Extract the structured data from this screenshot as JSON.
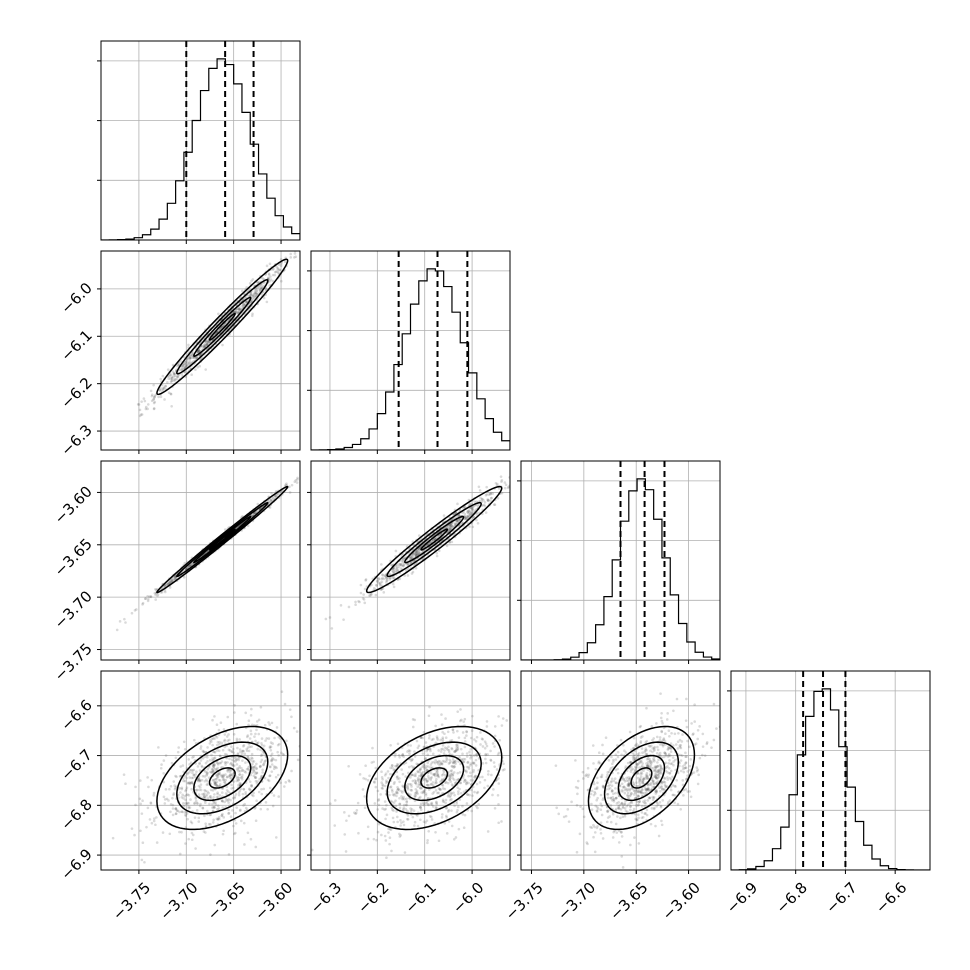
{
  "chart_data": {
    "type": "corner",
    "parameters": [
      {
        "range": [
          -3.79,
          -3.58
        ],
        "ticks": [
          -3.75,
          -3.7,
          -3.65,
          -3.6
        ],
        "tick_labels": [
          "−3.75",
          "−3.70",
          "−3.65",
          "−3.60"
        ],
        "quantiles": [
          -3.7,
          -3.659,
          -3.629
        ],
        "mean": -3.662,
        "sd": 0.03
      },
      {
        "range": [
          -6.34,
          -5.92
        ],
        "ticks": [
          -6.3,
          -6.2,
          -6.1,
          -6.0
        ],
        "tick_labels": [
          "−6.3",
          "−6.2",
          "−6.1",
          "−6.0"
        ],
        "quantiles": [
          -6.155,
          -6.073,
          -6.01
        ],
        "mean": -6.08,
        "sd": 0.062
      },
      {
        "range": [
          -3.76,
          -3.57
        ],
        "ticks": [
          -3.75,
          -3.7,
          -3.65,
          -3.6
        ],
        "tick_labels": [
          "−3.75",
          "−3.70",
          "−3.65",
          "−3.60"
        ],
        "quantiles": [
          -3.665,
          -3.642,
          -3.623
        ],
        "mean": -3.645,
        "sd": 0.022
      },
      {
        "range": [
          -6.93,
          -6.53
        ],
        "ticks": [
          -6.9,
          -6.8,
          -6.7,
          -6.6
        ],
        "tick_labels": [
          "−6.9",
          "−6.8",
          "−6.7",
          "−6.6"
        ],
        "quantiles": [
          -6.785,
          -6.745,
          -6.7
        ],
        "mean": -6.745,
        "sd": 0.045
      }
    ],
    "correlations": {
      "1-0": 0.98,
      "2-0": 0.995,
      "2-1": 0.97,
      "3-0": 0.45,
      "3-1": 0.4,
      "3-2": 0.45
    },
    "grid": true,
    "quantile_style": "dashed"
  }
}
